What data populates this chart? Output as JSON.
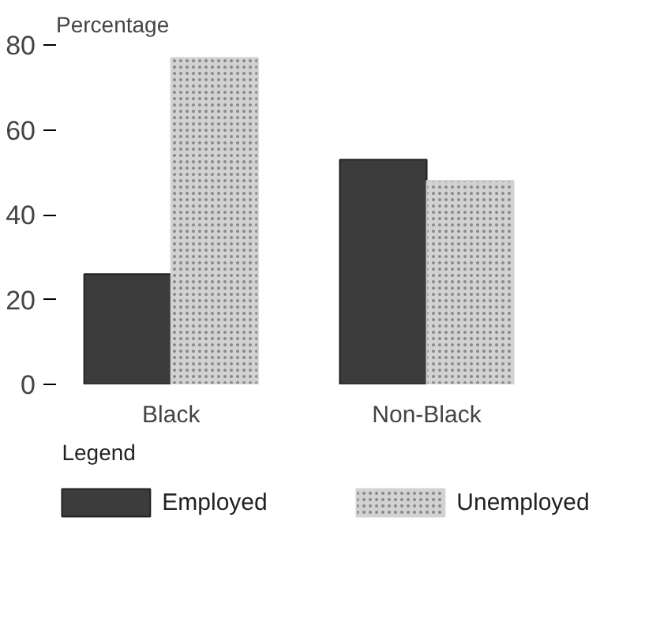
{
  "chart_data": {
    "type": "bar",
    "ylabel": "Percentage",
    "categories": [
      "Black",
      "Non-Black"
    ],
    "series": [
      {
        "name": "Employed",
        "color": "#3c3c3c",
        "values": [
          26,
          53
        ]
      },
      {
        "name": "Unemployed",
        "color": "#d2d2d2",
        "values": [
          77,
          48
        ]
      }
    ],
    "ylim": [
      0,
      80
    ],
    "yticks": [
      0,
      20,
      40,
      60,
      80
    ],
    "grid": false,
    "legend": "bottom",
    "legend_title": "Legend"
  }
}
